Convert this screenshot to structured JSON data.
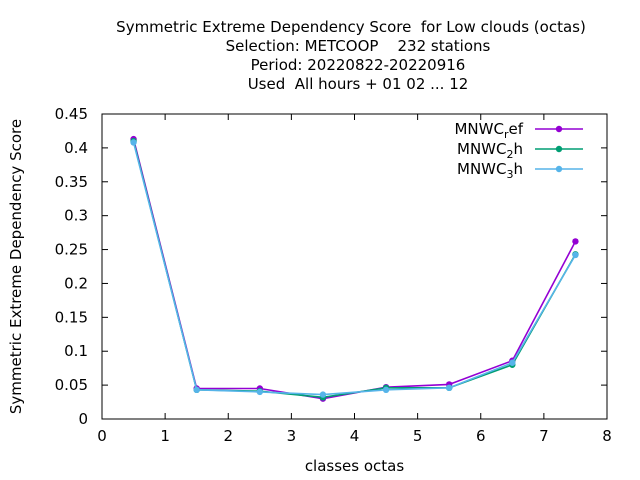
{
  "chart_data": {
    "type": "line",
    "title_lines": [
      "Symmetric Extreme Dependency Score  for Low clouds (octas)",
      "Selection: METCOOP    232 stations",
      "Period: 20220822-20220916",
      "Used  All hours + 01 02 ... 12"
    ],
    "xlabel": "classes octas",
    "ylabel": "Symmetric Extreme Dependency Score",
    "xlim": [
      0,
      8
    ],
    "ylim": [
      0,
      0.45
    ],
    "x_ticks": [
      "0",
      "1",
      "2",
      "3",
      "4",
      "5",
      "6",
      "7",
      "8"
    ],
    "y_ticks": [
      "0",
      "0.05",
      "0.1",
      "0.15",
      "0.2",
      "0.25",
      "0.3",
      "0.35",
      "0.4",
      "0.45"
    ],
    "grid": false,
    "legend_position": "top-right",
    "x": [
      0.5,
      1.5,
      2.5,
      3.5,
      4.5,
      5.5,
      6.5,
      7.5
    ],
    "series": [
      {
        "name": "MNWC",
        "sub": "r",
        "suffix": "ef",
        "color": "#9400d3",
        "values": [
          0.413,
          0.045,
          0.045,
          0.03,
          0.047,
          0.051,
          0.086,
          0.262
        ]
      },
      {
        "name": "MNWC",
        "sub": "2",
        "suffix": "h",
        "color": "#009e73",
        "values": [
          0.41,
          0.043,
          0.041,
          0.032,
          0.046,
          0.046,
          0.08,
          0.243
        ]
      },
      {
        "name": "MNWC",
        "sub": "3",
        "suffix": "h",
        "color": "#56b4e9",
        "values": [
          0.408,
          0.043,
          0.04,
          0.036,
          0.043,
          0.046,
          0.083,
          0.242
        ]
      }
    ]
  }
}
